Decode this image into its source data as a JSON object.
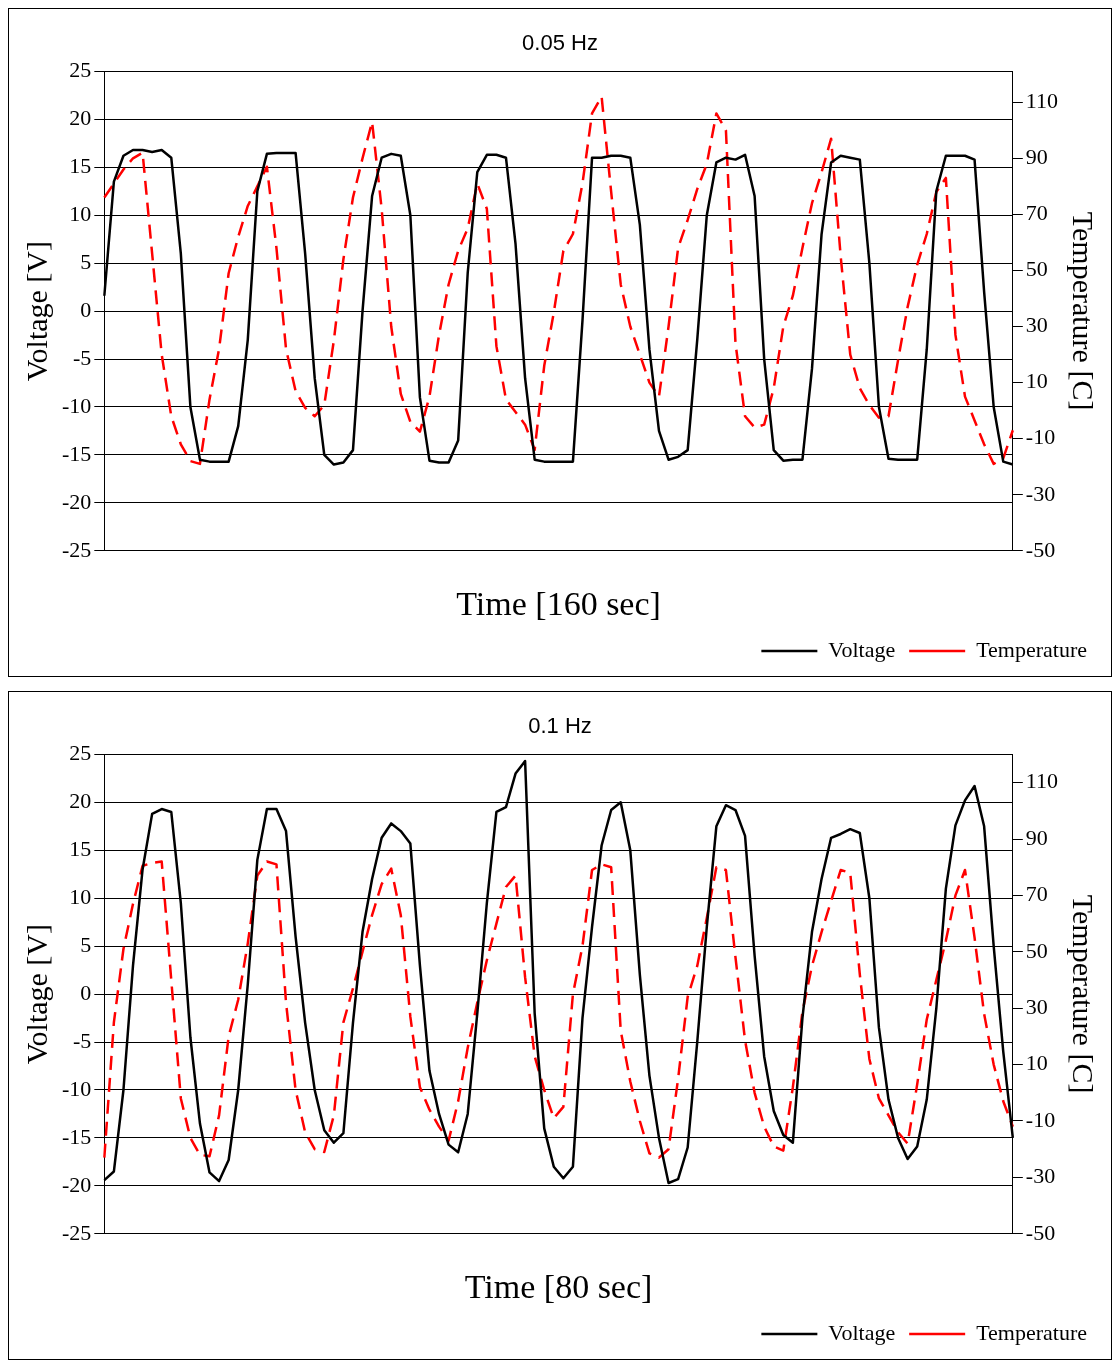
{
  "chart_data": [
    {
      "type": "line",
      "title": "0.05 Hz",
      "xlabel": "Time [160 sec]",
      "ylabel": "Voltage [V]",
      "y2label": "Temperature [C]",
      "categories": [
        null,
        null,
        null,
        null,
        null,
        null,
        null,
        null,
        null,
        null,
        null,
        null,
        null,
        null,
        null,
        null,
        null,
        null,
        null,
        null,
        null,
        null,
        null,
        null,
        null,
        null,
        null,
        null,
        null,
        null,
        null,
        null,
        null,
        null,
        null,
        null,
        null,
        null,
        null,
        null,
        null,
        null,
        null,
        null,
        null,
        null,
        null,
        null,
        null,
        null,
        null,
        null,
        null,
        null,
        null,
        null,
        null,
        null,
        null,
        null,
        null,
        null,
        null,
        null,
        null,
        null,
        null,
        null,
        null,
        null,
        null,
        null,
        null,
        null,
        null,
        null,
        null,
        null,
        null,
        null,
        null,
        null,
        null,
        null,
        null,
        null,
        null,
        null,
        null,
        null,
        null,
        null,
        null,
        null,
        null,
        null
      ],
      "ylim": [
        -25,
        25
      ],
      "yticks": [
        -25,
        -20,
        -15,
        -10,
        -5,
        0,
        5,
        10,
        15,
        20,
        25
      ],
      "y2lim": [
        -50,
        121
      ],
      "y2ticks": [
        -50,
        -30,
        -10,
        10,
        30,
        50,
        70,
        90,
        110
      ],
      "grid": "y",
      "legend": "bottom right",
      "marker": "none",
      "series": [
        {
          "name": "Voltage",
          "color": "#000000",
          "line_style": "solid",
          "values": [
            1.6,
            13.5,
            16.2,
            16.8,
            16.8,
            16.6,
            16.8,
            16,
            6,
            -10,
            -15.5,
            -15.7,
            -15.7,
            -15.7,
            -12,
            -3,
            12.5,
            16.4,
            16.5,
            16.5,
            16.5,
            6,
            -7,
            -15,
            -16,
            -15.8,
            -14.5,
            0,
            12,
            16,
            16.4,
            16.2,
            10,
            -9,
            -15.6,
            -15.8,
            -15.8,
            -13.5,
            4,
            14.5,
            16.3,
            16.3,
            16,
            7,
            -7,
            -15.5,
            -15.7,
            -15.7,
            -15.7,
            -15.7,
            -1,
            16,
            16,
            16.2,
            16.2,
            16,
            9,
            -4,
            -12.5,
            -15.5,
            -15.2,
            -14.5,
            -3,
            10,
            15.5,
            16,
            15.8,
            16.3,
            12,
            -5,
            -14.5,
            -15.6,
            -15.5,
            -15.5,
            -6,
            8,
            15.5,
            16.2,
            16,
            15.8,
            5,
            -10,
            -15.4,
            -15.5,
            -15.5,
            -15.5,
            -4,
            12.5,
            16.2,
            16.2,
            16.2,
            15.8,
            2,
            -10,
            -15.7,
            -16
          ]
        },
        {
          "name": "Temperature",
          "color": "#ff0000",
          "line_style": "dashed",
          "axis": "y2",
          "values": [
            76,
            81,
            86,
            90,
            92,
            56,
            20,
            -2,
            -12,
            -18,
            -19,
            4,
            22,
            49,
            62,
            73,
            80,
            87,
            58,
            22,
            7,
            1,
            -2,
            2,
            25,
            54,
            76,
            90,
            103,
            72,
            30,
            6,
            -4,
            -7.5,
            5,
            27,
            45,
            57,
            65,
            81,
            72,
            23,
            4,
            -0.5,
            -5,
            -14,
            16,
            35,
            57,
            63,
            81,
            106,
            112,
            78,
            45,
            30,
            20,
            10,
            5,
            30,
            58,
            68,
            79,
            88,
            106,
            100,
            24,
            -2,
            -6,
            -5,
            8,
            30,
            41,
            58,
            74,
            85,
            97,
            55,
            20,
            8,
            2,
            -2.5,
            -2,
            18,
            37,
            52,
            63,
            78,
            83,
            27,
            5,
            -3.5,
            -12,
            -19,
            -17,
            -7
          ]
        }
      ]
    },
    {
      "type": "line",
      "title": "0.1 Hz",
      "xlabel": "Time [80 sec]",
      "ylabel": "Voltage [V]",
      "y2label": "Temperature [C]",
      "categories": [
        null,
        null,
        null,
        null,
        null,
        null,
        null,
        null,
        null,
        null,
        null,
        null,
        null,
        null,
        null,
        null,
        null,
        null,
        null,
        null,
        null,
        null,
        null,
        null,
        null,
        null,
        null,
        null,
        null,
        null,
        null,
        null,
        null,
        null,
        null,
        null,
        null,
        null,
        null,
        null,
        null,
        null,
        null,
        null,
        null,
        null,
        null,
        null,
        null,
        null,
        null,
        null,
        null,
        null,
        null,
        null,
        null,
        null,
        null,
        null,
        null,
        null,
        null,
        null,
        null,
        null,
        null,
        null,
        null,
        null,
        null,
        null,
        null,
        null,
        null,
        null,
        null,
        null,
        null,
        null,
        null,
        null,
        null,
        null,
        null,
        null,
        null,
        null,
        null,
        null,
        null,
        null,
        null,
        null,
        null,
        null
      ],
      "ylim": [
        -25,
        25
      ],
      "yticks": [
        -25,
        -20,
        -15,
        -10,
        -5,
        0,
        5,
        10,
        15,
        20,
        25
      ],
      "y2lim": [
        -50,
        120
      ],
      "y2ticks": [
        -50,
        -30,
        -10,
        10,
        30,
        50,
        70,
        90,
        110
      ],
      "grid": "y",
      "legend": "bottom right",
      "marker": "none",
      "series": [
        {
          "name": "Voltage",
          "color": "#000000",
          "line_style": "solid",
          "values": [
            -19.4,
            -18.5,
            -10,
            3,
            13,
            18.8,
            19.3,
            19,
            9.5,
            -4.5,
            -13.5,
            -18.6,
            -19.5,
            -17.3,
            -10,
            1,
            14,
            19.3,
            19.3,
            17,
            6,
            -3,
            -10,
            -14.2,
            -15.5,
            -14.5,
            -3,
            6.5,
            12,
            16.3,
            17.8,
            17,
            15.7,
            3,
            -8,
            -12.5,
            -15.7,
            -16.5,
            -12.5,
            -2,
            9.5,
            19,
            19.5,
            23,
            24.3,
            -2,
            -14,
            -18,
            -19.2,
            -18,
            -2.5,
            7,
            15.5,
            19.2,
            20,
            15,
            2,
            -8.5,
            -15,
            -19.7,
            -19.3,
            -16,
            -5,
            7,
            17.5,
            19.7,
            19.2,
            16.5,
            4,
            -6.5,
            -12.2,
            -14.7,
            -15.5,
            -2.5,
            6.5,
            12,
            16.3,
            16.7,
            17.2,
            16.8,
            10,
            -3.5,
            -11,
            -15,
            -17.2,
            -15.9,
            -11,
            -1.5,
            11,
            17.6,
            20.2,
            21.7,
            17.5,
            5,
            -6,
            -15
          ]
        },
        {
          "name": "Temperature",
          "color": "#ff0000",
          "line_style": "dashed",
          "axis": "y2",
          "values": [
            -23,
            25,
            51,
            67,
            80.5,
            81.5,
            82,
            40,
            -2,
            -16,
            -22,
            -22.5,
            -8,
            20,
            33,
            53,
            77,
            82,
            81,
            32,
            1,
            -14,
            -20,
            -21,
            -8,
            25,
            37,
            50,
            63,
            74,
            79.5,
            63,
            27,
            2,
            -6,
            -12,
            -17,
            -3,
            16,
            32,
            47,
            60,
            73,
            77,
            41,
            13,
            1,
            -9,
            -5,
            35,
            52,
            79,
            81,
            80,
            22,
            4,
            -10,
            -21.5,
            -23,
            -20,
            5,
            34,
            45,
            62,
            80,
            79,
            48,
            18.6,
            0,
            -12,
            -19,
            -20.5,
            2,
            28.7,
            45,
            57,
            68,
            79,
            78,
            42,
            12,
            -2,
            -8,
            -14,
            -18,
            3,
            26,
            40,
            54,
            70,
            79,
            55,
            28,
            10,
            -3,
            -12
          ]
        }
      ]
    }
  ]
}
